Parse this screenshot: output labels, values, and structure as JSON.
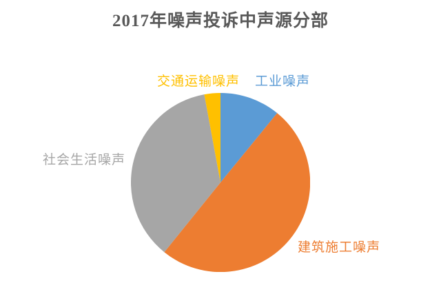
{
  "chart_data": {
    "type": "pie",
    "title": "2017年噪声投诉中声源分部",
    "title_color": "#595959",
    "background_color": "#ffffff",
    "legend": "none",
    "start_angle_deg": 0,
    "direction": "clockwise",
    "data_labels": "category names outside pie, colored to match slice",
    "slices": [
      {
        "id": "industrial",
        "label": "工业噪声",
        "value_pct": 10.9,
        "color": "#5B9BD5"
      },
      {
        "id": "construction",
        "label": "建筑施工噪声",
        "value_pct": 49.9,
        "color": "#ED7D31"
      },
      {
        "id": "social",
        "label": "社会生活噪声",
        "value_pct": 36.3,
        "color": "#A6A6A6"
      },
      {
        "id": "traffic",
        "label": "交通运输噪声",
        "value_pct": 2.9,
        "color": "#FFC000"
      }
    ]
  }
}
